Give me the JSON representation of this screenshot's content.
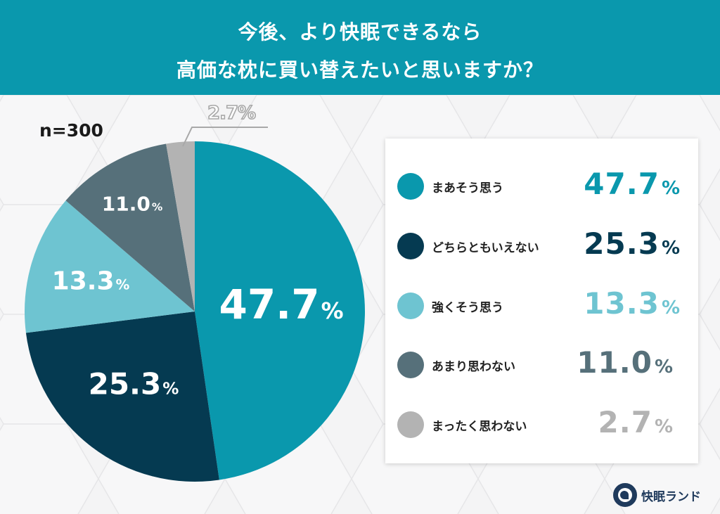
{
  "header": {
    "title_line1": "今後、より快眠できるなら",
    "title_line2": "高価な枕に買い替えたいと思いますか？",
    "background_color": "#0a98ad"
  },
  "sample_size": "n=300",
  "outside_label": {
    "value": "2.7",
    "text": "2.7%"
  },
  "legend": {
    "items": [
      {
        "label": "まあそう思う",
        "value": "47.7",
        "pct": "%",
        "color": "#0a98ad"
      },
      {
        "label": "どちらともいえない",
        "value": "25.3",
        "pct": "%",
        "color": "#053a51"
      },
      {
        "label": "強くそう思う",
        "value": "13.3",
        "pct": "%",
        "color": "#6ec4d1"
      },
      {
        "label": "あまり思わない",
        "value": "11.0",
        "pct": "%",
        "color": "#56707a"
      },
      {
        "label": "まったく思わない",
        "value": "2.7",
        "pct": "%",
        "color": "#b3b3b3"
      }
    ]
  },
  "slice_labels": [
    {
      "value": "47.7",
      "pct": "%"
    },
    {
      "value": "25.3",
      "pct": "%"
    },
    {
      "value": "13.3",
      "pct": "%"
    },
    {
      "value": "11.0",
      "pct": "%"
    }
  ],
  "logo": {
    "text": "快眠ランド"
  },
  "chart_data": {
    "type": "pie",
    "title": "今後、より快眠できるなら高価な枕に買い替えたいと思いますか？",
    "subtitle": "n=300",
    "categories": [
      "まあそう思う",
      "どちらともいえない",
      "強くそう思う",
      "あまり思わない",
      "まったく思わない"
    ],
    "values": [
      47.7,
      25.3,
      13.3,
      11.0,
      2.7
    ],
    "colors": [
      "#0a98ad",
      "#053a51",
      "#6ec4d1",
      "#56707a",
      "#b3b3b3"
    ],
    "unit": "%",
    "start_angle": "12 o'clock, clockwise",
    "legend_position": "right"
  }
}
